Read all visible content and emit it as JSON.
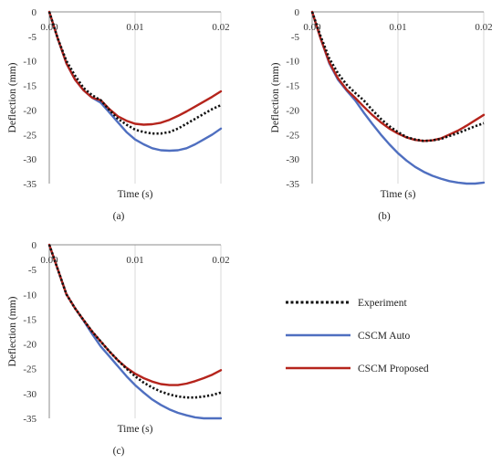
{
  "chart_data": [
    {
      "panel_label": "(a)",
      "type": "line",
      "xlabel": "Time (s)",
      "ylabel": "Deflection (mm)",
      "xlim": [
        0,
        0.02
      ],
      "ylim": [
        -35,
        0
      ],
      "x_ticks": [
        "0.00",
        "0.01",
        "0.02"
      ],
      "y_ticks": [
        "0",
        "-5",
        "-10",
        "-15",
        "-20",
        "-25",
        "-30",
        "-35"
      ],
      "grid": "vertical",
      "series": [
        {
          "name": "Experiment",
          "color": "#111111",
          "style": "dotted",
          "x": [
            0,
            0.001,
            0.002,
            0.003,
            0.004,
            0.005,
            0.006,
            0.007,
            0.008,
            0.009,
            0.01,
            0.011,
            0.012,
            0.013,
            0.014,
            0.015,
            0.016,
            0.017,
            0.018,
            0.019,
            0.02
          ],
          "y": [
            0,
            -5.5,
            -10,
            -13,
            -15.5,
            -17,
            -18,
            -20,
            -21.8,
            -23,
            -24,
            -24.5,
            -24.8,
            -24.8,
            -24.5,
            -23.8,
            -22.8,
            -21.8,
            -20.8,
            -19.8,
            -19
          ]
        },
        {
          "name": "CSCM Auto",
          "color": "#4f6fc0",
          "style": "solid",
          "x": [
            0,
            0.001,
            0.002,
            0.003,
            0.004,
            0.005,
            0.006,
            0.007,
            0.008,
            0.009,
            0.01,
            0.011,
            0.012,
            0.013,
            0.014,
            0.015,
            0.016,
            0.017,
            0.018,
            0.019,
            0.02
          ],
          "y": [
            0,
            -5.5,
            -10.5,
            -13.8,
            -16,
            -17.5,
            -18.5,
            -20.5,
            -22.5,
            -24.5,
            -26,
            -27,
            -27.8,
            -28.2,
            -28.3,
            -28.2,
            -27.8,
            -27,
            -26,
            -25,
            -23.8
          ]
        },
        {
          "name": "CSCM Proposed",
          "color": "#b5241c",
          "style": "solid",
          "x": [
            0,
            0.001,
            0.002,
            0.003,
            0.004,
            0.005,
            0.006,
            0.007,
            0.008,
            0.009,
            0.01,
            0.011,
            0.012,
            0.013,
            0.014,
            0.015,
            0.016,
            0.017,
            0.018,
            0.019,
            0.02
          ],
          "y": [
            0,
            -5.5,
            -10.5,
            -13.8,
            -16,
            -17.5,
            -18,
            -19.8,
            -21.3,
            -22.2,
            -22.8,
            -23,
            -22.9,
            -22.6,
            -22,
            -21.2,
            -20.3,
            -19.3,
            -18.3,
            -17.3,
            -16.2
          ]
        }
      ]
    },
    {
      "panel_label": "(b)",
      "type": "line",
      "xlabel": "Time (s)",
      "ylabel": "Deflection (mm)",
      "xlim": [
        0,
        0.02
      ],
      "ylim": [
        -35,
        0
      ],
      "x_ticks": [
        "0.00",
        "0.01",
        "0.02"
      ],
      "y_ticks": [
        "0",
        "-5",
        "-10",
        "-15",
        "-20",
        "-25",
        "-30",
        "-35"
      ],
      "grid": "vertical",
      "series": [
        {
          "name": "Experiment",
          "color": "#111111",
          "style": "dotted",
          "x": [
            0,
            0.001,
            0.002,
            0.003,
            0.004,
            0.005,
            0.006,
            0.007,
            0.008,
            0.009,
            0.01,
            0.011,
            0.012,
            0.013,
            0.014,
            0.015,
            0.016,
            0.017,
            0.018,
            0.019,
            0.02
          ],
          "y": [
            0,
            -5,
            -9.5,
            -12.5,
            -14.8,
            -16.5,
            -18,
            -20,
            -21.8,
            -23.3,
            -24.5,
            -25.5,
            -26,
            -26.3,
            -26.2,
            -25.9,
            -25.3,
            -24.7,
            -24,
            -23.3,
            -22.7
          ]
        },
        {
          "name": "CSCM Auto",
          "color": "#4f6fc0",
          "style": "solid",
          "x": [
            0,
            0.001,
            0.002,
            0.003,
            0.004,
            0.005,
            0.006,
            0.007,
            0.008,
            0.009,
            0.01,
            0.011,
            0.012,
            0.013,
            0.014,
            0.015,
            0.016,
            0.017,
            0.018,
            0.019,
            0.02
          ],
          "y": [
            0,
            -5.5,
            -10.5,
            -13.8,
            -16,
            -18,
            -20.5,
            -22.8,
            -25,
            -27,
            -28.8,
            -30.3,
            -31.6,
            -32.6,
            -33.4,
            -34,
            -34.5,
            -34.8,
            -35,
            -35,
            -34.8
          ]
        },
        {
          "name": "CSCM Proposed",
          "color": "#b5241c",
          "style": "solid",
          "x": [
            0,
            0.001,
            0.002,
            0.003,
            0.004,
            0.005,
            0.006,
            0.007,
            0.008,
            0.009,
            0.01,
            0.011,
            0.012,
            0.013,
            0.014,
            0.015,
            0.016,
            0.017,
            0.018,
            0.019,
            0.02
          ],
          "y": [
            0,
            -5.5,
            -10.3,
            -13.5,
            -15.8,
            -17.5,
            -19.3,
            -21,
            -22.5,
            -23.8,
            -24.8,
            -25.6,
            -26.1,
            -26.3,
            -26.2,
            -25.8,
            -25,
            -24.2,
            -23.2,
            -22.1,
            -21
          ]
        }
      ]
    },
    {
      "panel_label": "(c)",
      "type": "line",
      "xlabel": "Time (s)",
      "ylabel": "Deflection (mm)",
      "xlim": [
        0,
        0.02
      ],
      "ylim": [
        -35,
        0
      ],
      "x_ticks": [
        "0.00",
        "0.01",
        "0.02"
      ],
      "y_ticks": [
        "0",
        "-5",
        "-10",
        "-15",
        "-20",
        "-25",
        "-30",
        "-35"
      ],
      "grid": "vertical",
      "series": [
        {
          "name": "Experiment",
          "color": "#111111",
          "style": "dotted",
          "x": [
            0,
            0.001,
            0.002,
            0.003,
            0.004,
            0.005,
            0.006,
            0.007,
            0.008,
            0.009,
            0.01,
            0.011,
            0.012,
            0.013,
            0.014,
            0.015,
            0.016,
            0.017,
            0.018,
            0.019,
            0.02
          ],
          "y": [
            0,
            -5,
            -10,
            -12.8,
            -15.2,
            -17.5,
            -19.5,
            -21.5,
            -23.3,
            -25,
            -26.5,
            -27.8,
            -28.8,
            -29.6,
            -30.2,
            -30.6,
            -30.8,
            -30.8,
            -30.6,
            -30.3,
            -29.8
          ]
        },
        {
          "name": "CSCM Auto",
          "color": "#4f6fc0",
          "style": "solid",
          "x": [
            0,
            0.001,
            0.002,
            0.003,
            0.004,
            0.005,
            0.006,
            0.007,
            0.008,
            0.009,
            0.01,
            0.011,
            0.012,
            0.013,
            0.014,
            0.015,
            0.016,
            0.017,
            0.018,
            0.019,
            0.02
          ],
          "y": [
            0,
            -5,
            -10,
            -12.8,
            -15.3,
            -18,
            -20.5,
            -22.5,
            -24.5,
            -26.5,
            -28.3,
            -29.8,
            -31.2,
            -32.3,
            -33.2,
            -33.9,
            -34.4,
            -34.8,
            -35,
            -35,
            -35
          ]
        },
        {
          "name": "CSCM Proposed",
          "color": "#b5241c",
          "style": "solid",
          "x": [
            0,
            0.001,
            0.002,
            0.003,
            0.004,
            0.005,
            0.006,
            0.007,
            0.008,
            0.009,
            0.01,
            0.011,
            0.012,
            0.013,
            0.014,
            0.015,
            0.016,
            0.017,
            0.018,
            0.019,
            0.02
          ],
          "y": [
            0,
            -5,
            -10,
            -12.8,
            -15.2,
            -17.5,
            -19.5,
            -21.5,
            -23.3,
            -24.8,
            -26,
            -26.9,
            -27.6,
            -28.1,
            -28.3,
            -28.3,
            -28,
            -27.5,
            -26.9,
            -26.2,
            -25.3
          ]
        }
      ]
    }
  ],
  "legend": {
    "items": [
      {
        "label": "Experiment",
        "color": "#111111",
        "style": "dotted"
      },
      {
        "label": "CSCM Auto",
        "color": "#4f6fc0",
        "style": "solid"
      },
      {
        "label": "CSCM Proposed",
        "color": "#b5241c",
        "style": "solid"
      }
    ]
  }
}
